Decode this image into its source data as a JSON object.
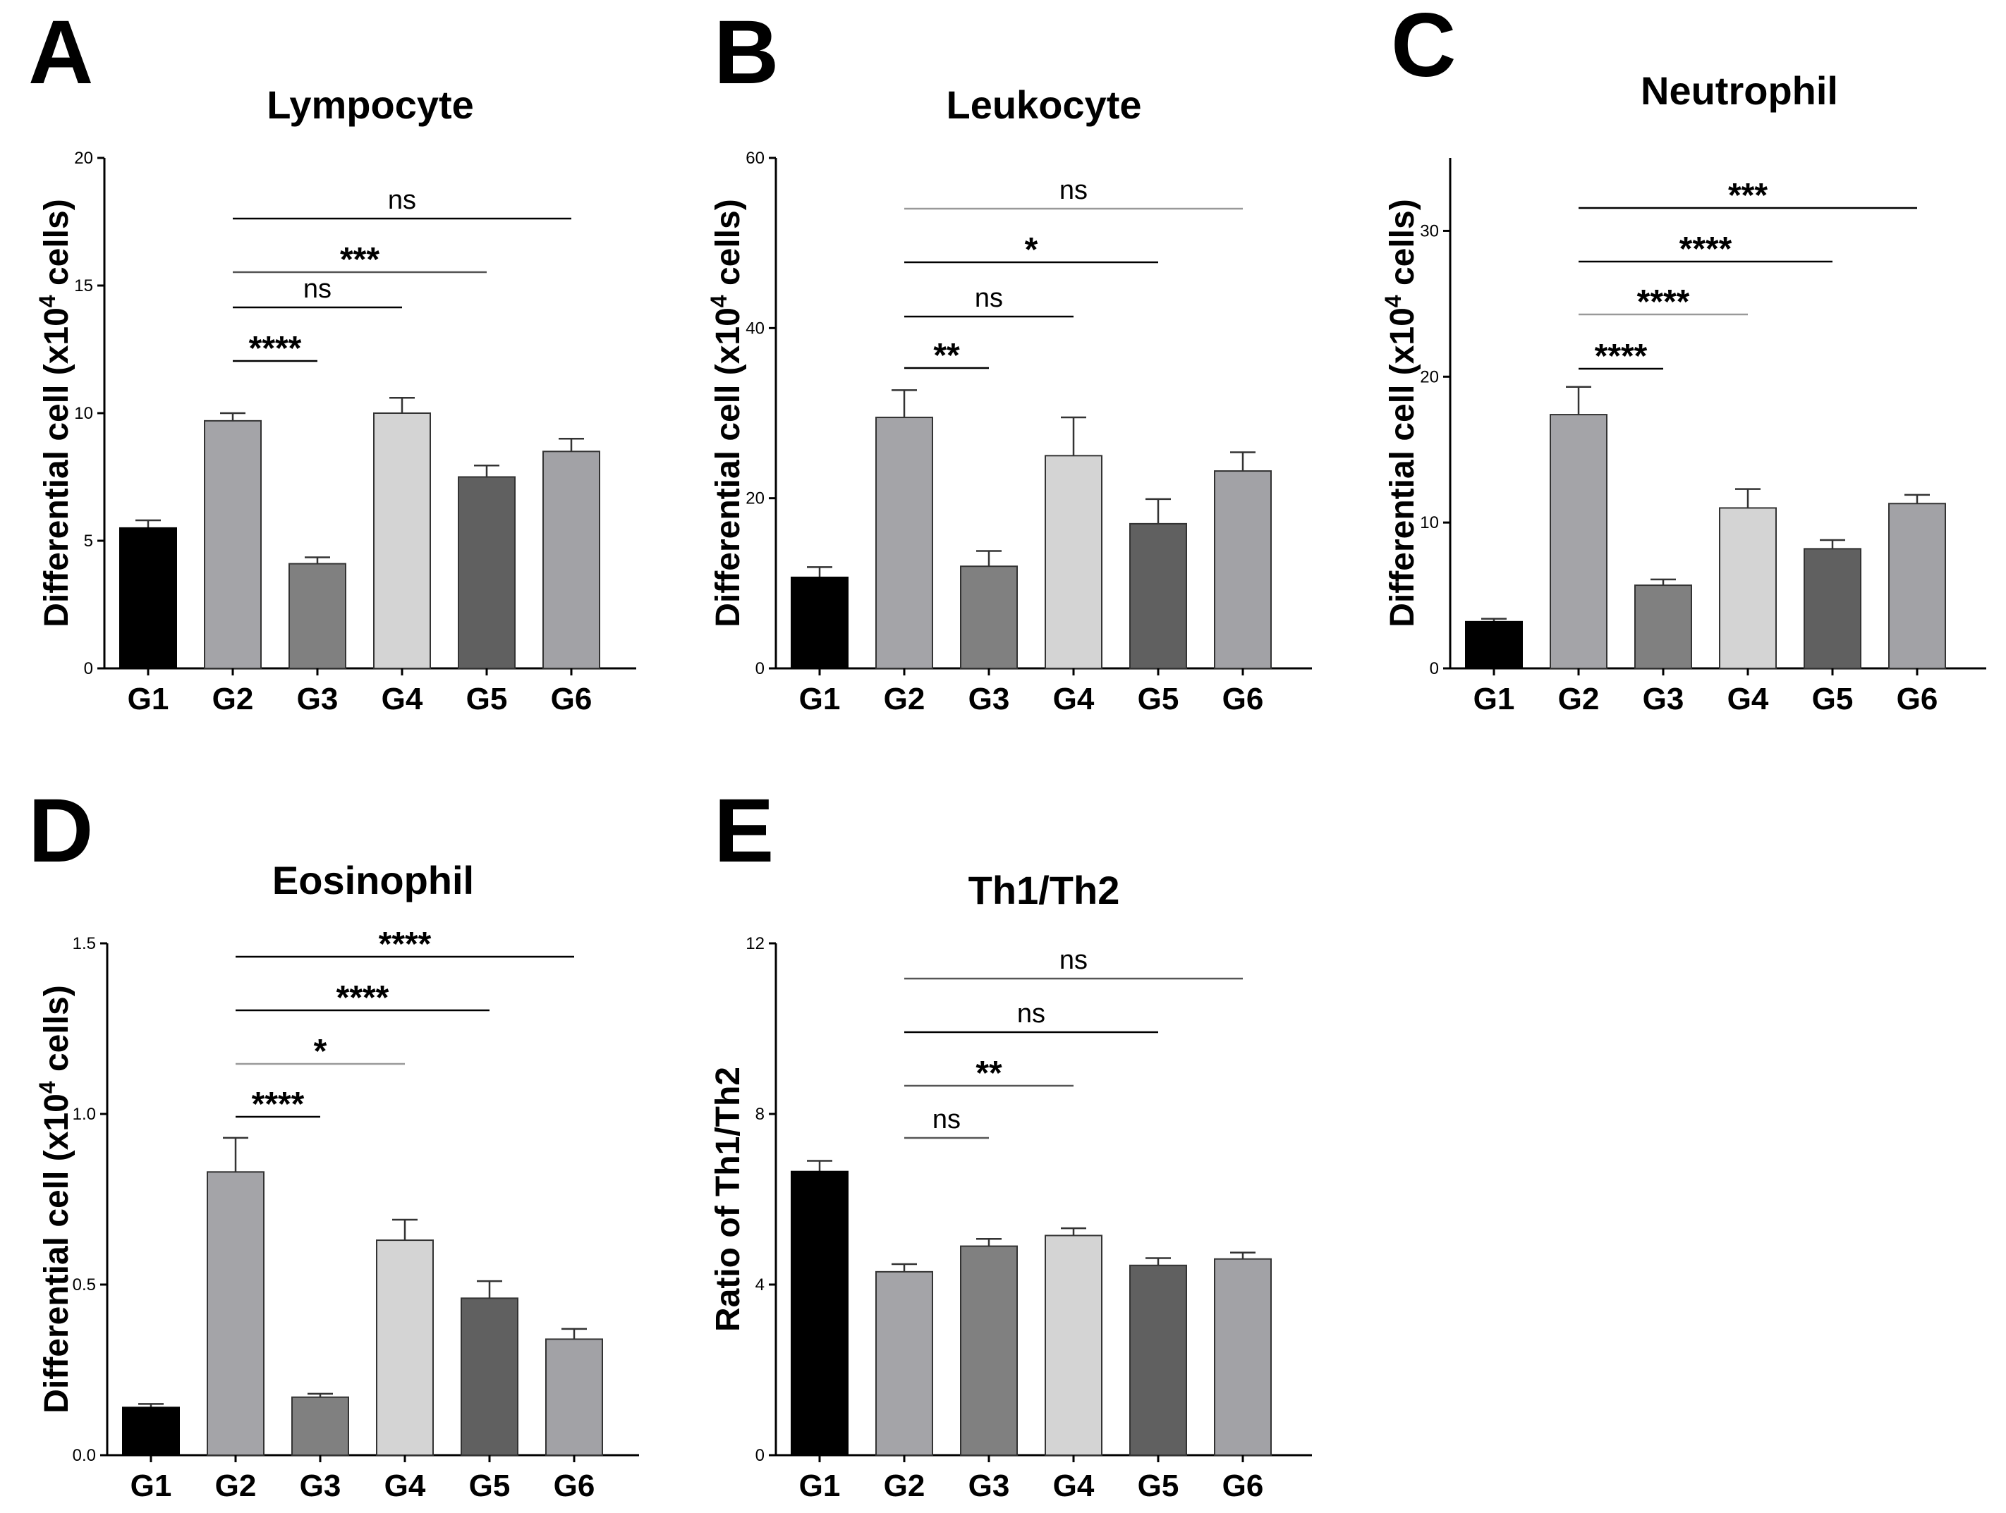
{
  "chart_data": [
    {
      "panel": "A",
      "type": "bar",
      "title": "Lympocyte",
      "ylabel_prefix": "Differential cell (x10",
      "ylabel_sup": "4",
      "ylabel_suffix": " cells)",
      "categories": [
        "G1",
        "G2",
        "G3",
        "G4",
        "G5",
        "G6"
      ],
      "values": [
        5.5,
        9.7,
        4.1,
        10.0,
        7.5,
        8.5
      ],
      "errors": [
        0.3,
        0.3,
        0.25,
        0.6,
        0.45,
        0.5
      ],
      "colors": [
        "#000000",
        "#a4a4a8",
        "#808080",
        "#d4d4d4",
        "#606060",
        "#a2a2a6"
      ],
      "ylim": [
        0,
        20
      ],
      "yticks": [
        0,
        5,
        10,
        15,
        20
      ],
      "ytick_labels": [
        "0",
        "5",
        "10",
        "15",
        "20"
      ],
      "comparisons": [
        {
          "from": "G2",
          "to": "G3",
          "label": "****",
          "color": "#000000"
        },
        {
          "from": "G2",
          "to": "G4",
          "label": "ns",
          "color": "#000000"
        },
        {
          "from": "G2",
          "to": "G5",
          "label": "***",
          "color": "#555555"
        },
        {
          "from": "G2",
          "to": "G6",
          "label": "ns",
          "color": "#000000"
        }
      ]
    },
    {
      "panel": "B",
      "type": "bar",
      "title": "Leukocyte",
      "ylabel_prefix": "Differential cell (x10",
      "ylabel_sup": "4",
      "ylabel_suffix": " cells)",
      "categories": [
        "G1",
        "G2",
        "G3",
        "G4",
        "G5",
        "G6"
      ],
      "values": [
        10.7,
        29.5,
        12.0,
        25.0,
        17.0,
        23.2
      ],
      "errors": [
        1.2,
        3.2,
        1.8,
        4.5,
        2.9,
        2.2
      ],
      "colors": [
        "#000000",
        "#a4a4a8",
        "#808080",
        "#d4d4d4",
        "#606060",
        "#a2a2a6"
      ],
      "ylim": [
        0,
        60
      ],
      "yticks": [
        0,
        20,
        40,
        60
      ],
      "ytick_labels": [
        "0",
        "20",
        "40",
        "60"
      ],
      "comparisons": [
        {
          "from": "G2",
          "to": "G3",
          "label": "**",
          "color": "#000000"
        },
        {
          "from": "G2",
          "to": "G4",
          "label": "ns",
          "color": "#000000"
        },
        {
          "from": "G2",
          "to": "G5",
          "label": "*",
          "color": "#000000"
        },
        {
          "from": "G2",
          "to": "G6",
          "label": "ns",
          "color": "#999999"
        }
      ]
    },
    {
      "panel": "C",
      "type": "bar",
      "title": "Neutrophil",
      "ylabel_prefix": "Differential cell (x10",
      "ylabel_sup": "4",
      "ylabel_suffix": " cells)",
      "categories": [
        "G1",
        "G2",
        "G3",
        "G4",
        "G5",
        "G6"
      ],
      "values": [
        3.2,
        17.4,
        5.7,
        11.0,
        8.2,
        11.3
      ],
      "errors": [
        0.2,
        1.9,
        0.4,
        1.3,
        0.6,
        0.6
      ],
      "colors": [
        "#000000",
        "#a4a4a8",
        "#808080",
        "#d4d4d4",
        "#606060",
        "#a2a2a6"
      ],
      "ylim": [
        0,
        35
      ],
      "yticks": [
        0,
        10,
        20,
        30
      ],
      "ytick_labels": [
        "0",
        "10",
        "20",
        "30"
      ],
      "comparisons": [
        {
          "from": "G2",
          "to": "G3",
          "label": "****",
          "color": "#000000"
        },
        {
          "from": "G2",
          "to": "G4",
          "label": "****",
          "color": "#999999"
        },
        {
          "from": "G2",
          "to": "G5",
          "label": "****",
          "color": "#000000"
        },
        {
          "from": "G2",
          "to": "G6",
          "label": "***",
          "color": "#000000"
        }
      ]
    },
    {
      "panel": "D",
      "type": "bar",
      "title": "Eosinophil",
      "ylabel_prefix": "Differential cell (x10",
      "ylabel_sup": "4",
      "ylabel_suffix": " cells)",
      "categories": [
        "G1",
        "G2",
        "G3",
        "G4",
        "G5",
        "G6"
      ],
      "values": [
        0.14,
        0.83,
        0.17,
        0.63,
        0.46,
        0.34
      ],
      "errors": [
        0.01,
        0.1,
        0.01,
        0.06,
        0.05,
        0.03
      ],
      "colors": [
        "#000000",
        "#a4a4a8",
        "#808080",
        "#d4d4d4",
        "#606060",
        "#a2a2a6"
      ],
      "ylim": [
        0,
        1.5
      ],
      "yticks": [
        0,
        0.5,
        1.0,
        1.5
      ],
      "ytick_labels": [
        "0.0",
        "0.5",
        "1.0",
        "1.5"
      ],
      "comparisons": [
        {
          "from": "G2",
          "to": "G3",
          "label": "****",
          "color": "#000000"
        },
        {
          "from": "G2",
          "to": "G4",
          "label": "*",
          "color": "#999999"
        },
        {
          "from": "G2",
          "to": "G5",
          "label": "****",
          "color": "#000000"
        },
        {
          "from": "G2",
          "to": "G6",
          "label": "****",
          "color": "#000000"
        }
      ]
    },
    {
      "panel": "E",
      "type": "bar",
      "title": "Th1/Th2",
      "ylabel_prefix": "Ratio of Th1/Th2",
      "ylabel_sup": "",
      "ylabel_suffix": "",
      "categories": [
        "G1",
        "G2",
        "G3",
        "G4",
        "G5",
        "G6"
      ],
      "values": [
        6.65,
        4.3,
        4.9,
        5.15,
        4.45,
        4.6
      ],
      "errors": [
        0.25,
        0.18,
        0.17,
        0.17,
        0.17,
        0.15
      ],
      "colors": [
        "#000000",
        "#a4a4a8",
        "#808080",
        "#d4d4d4",
        "#606060",
        "#a2a2a6"
      ],
      "ylim": [
        0,
        12
      ],
      "yticks": [
        0,
        4,
        8,
        12
      ],
      "ytick_labels": [
        "0",
        "4",
        "8",
        "12"
      ],
      "comparisons": [
        {
          "from": "G2",
          "to": "G3",
          "label": "ns",
          "color": "#555555"
        },
        {
          "from": "G2",
          "to": "G4",
          "label": "**",
          "color": "#555555"
        },
        {
          "from": "G2",
          "to": "G5",
          "label": "ns",
          "color": "#000000"
        },
        {
          "from": "G2",
          "to": "G6",
          "label": "ns",
          "color": "#555555"
        }
      ]
    }
  ]
}
